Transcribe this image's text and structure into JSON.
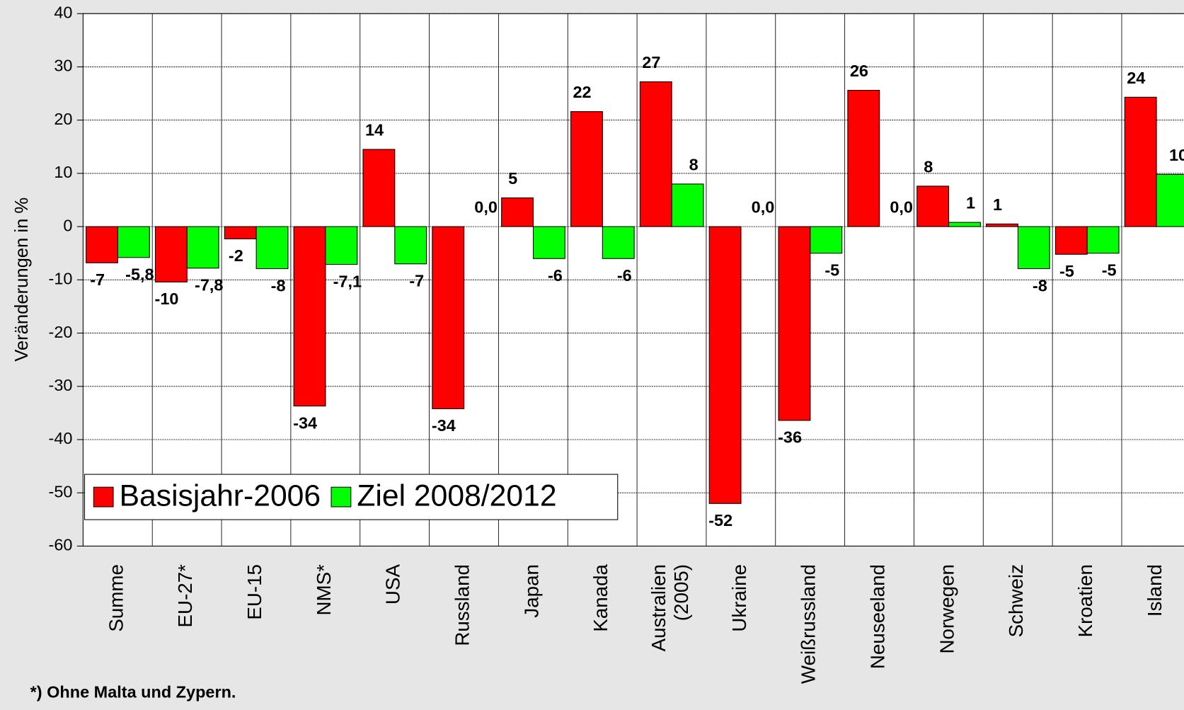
{
  "chart_data": {
    "type": "bar",
    "y_label": "Veränderungen in %",
    "footnote": "*) Ohne Malta und Zypern.",
    "categories": [
      "Summe",
      "EU-27*",
      "EU-15",
      "NMS*",
      "USA",
      "Russland",
      "Japan",
      "Kanada",
      "Australien\n(2005)",
      "Ukraine",
      "Weißrussland",
      "Neuseeland",
      "Norwegen",
      "Schweiz",
      "Kroatien",
      "Island"
    ],
    "series": [
      {
        "name": "Basisjahr-2006",
        "color": "#ff0000",
        "values": [
          -6.8,
          -10.4,
          -2.3,
          -33.7,
          14.5,
          -34.2,
          5.4,
          21.6,
          27.2,
          -52,
          -36.4,
          25.6,
          7.6,
          0.5,
          -5.2,
          24.3
        ],
        "value_labels": [
          "-7",
          "-10",
          "-2",
          "-34",
          "14",
          "-34",
          "5",
          "22",
          "27",
          "-52",
          "-36",
          "26",
          "8",
          "1",
          "-5",
          "24"
        ]
      },
      {
        "name": "Ziel 2008/2012",
        "color": "#00ff00",
        "values": [
          -5.8,
          -7.8,
          -7.9,
          -7.1,
          -7,
          0,
          -6,
          -6,
          8,
          0,
          -5,
          0,
          0.8,
          -7.9,
          -5,
          9.8
        ],
        "value_labels": [
          "-5,8",
          "-7,8",
          "-8",
          "-7,1",
          "-7",
          "0,0",
          "-6",
          "-6",
          "8",
          "0,0",
          "-5",
          "0,0",
          "1",
          "-8",
          "-5",
          "10"
        ]
      }
    ],
    "ylim": [
      -60,
      40
    ],
    "yticks": [
      -60,
      -50,
      -40,
      -30,
      -20,
      -10,
      0,
      10,
      20,
      30,
      40
    ],
    "grid": true,
    "legend": "lower left"
  }
}
